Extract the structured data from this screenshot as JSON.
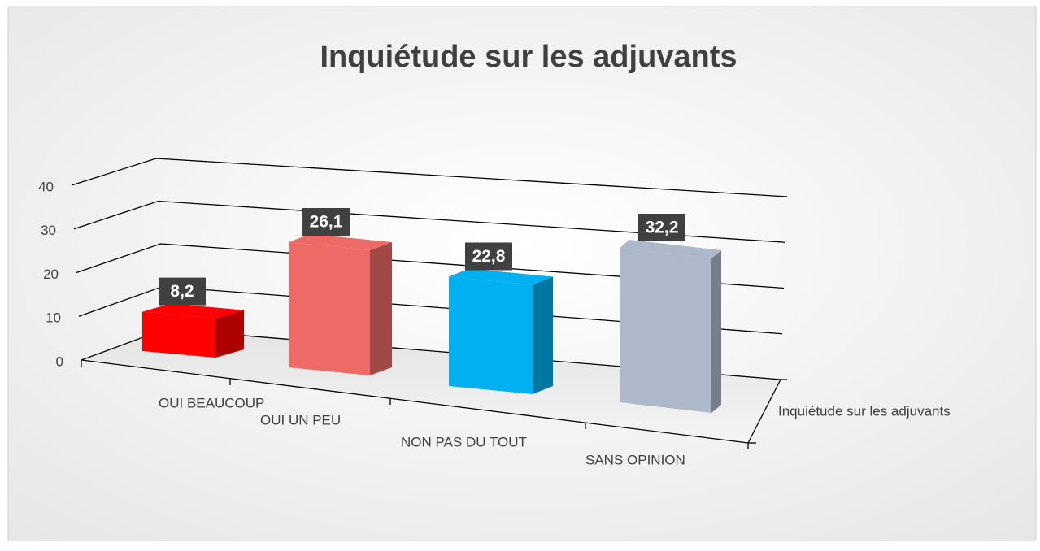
{
  "chart_data": {
    "type": "bar3d",
    "title": "Inquiétude sur les adjuvants",
    "categories": [
      "OUI BEAUCOUP",
      "OUI UN PEU",
      "NON PAS DU TOUT",
      "SANS OPINION"
    ],
    "series": [
      {
        "name": "Inquiétude sur les adjuvants",
        "values": [
          8.2,
          26.1,
          22.8,
          32.2
        ],
        "value_labels": [
          "8,2",
          "26,1",
          "22,8",
          "32,2"
        ],
        "colors": [
          "#ff0000",
          "#ee6a66",
          "#00b0f0",
          "#adb9ca"
        ]
      }
    ],
    "ylim": [
      0,
      40
    ],
    "yticks": [
      0,
      10,
      20,
      30,
      40
    ],
    "grid": true
  }
}
